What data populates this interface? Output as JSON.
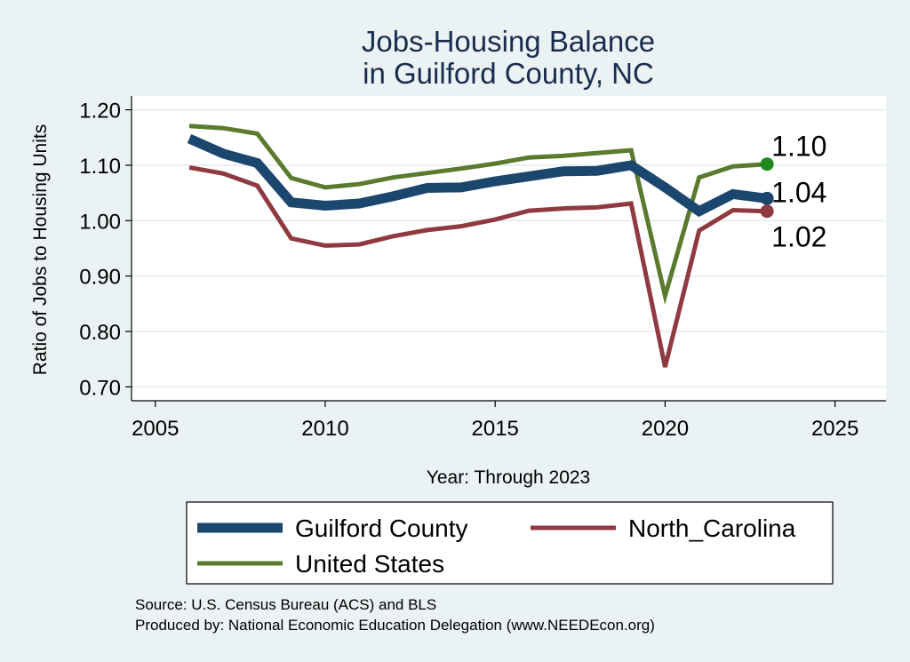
{
  "chart_data": {
    "type": "line",
    "title": [
      "Jobs-Housing Balance",
      "in Guilford County, NC"
    ],
    "xlabel": "Year: Through 2023",
    "ylabel": "Ratio of Jobs to Housing Units",
    "xlim": [
      2004.3,
      2026.5
    ],
    "ylim": [
      0.675,
      1.225
    ],
    "x_ticks": [
      2005,
      2010,
      2015,
      2020,
      2025
    ],
    "y_ticks": [
      0.7,
      0.8,
      0.9,
      1.0,
      1.1,
      1.2
    ],
    "y_tick_labels": [
      "0.70",
      "0.80",
      "0.90",
      "1.00",
      "1.10",
      "1.20"
    ],
    "grid": true,
    "legend_position": "bottom",
    "x": [
      2006,
      2007,
      2008,
      2009,
      2010,
      2011,
      2012,
      2013,
      2014,
      2015,
      2016,
      2017,
      2018,
      2019,
      2020,
      2021,
      2022,
      2023
    ],
    "series": [
      {
        "name": "Guilford County",
        "color": "#1b466e",
        "values": [
          1.148,
          1.121,
          1.104,
          1.033,
          1.027,
          1.031,
          1.044,
          1.059,
          1.06,
          1.071,
          1.08,
          1.089,
          1.09,
          1.1,
          1.06,
          1.017,
          1.048,
          1.04
        ],
        "end_label": "1.04"
      },
      {
        "name": "North_Carolina",
        "color": "#8f3a40",
        "values": [
          1.096,
          1.085,
          1.063,
          0.968,
          0.955,
          0.957,
          0.972,
          0.983,
          0.99,
          1.002,
          1.018,
          1.022,
          1.024,
          1.031,
          0.736,
          0.982,
          1.019,
          1.017
        ],
        "end_label": "1.02"
      },
      {
        "name": "United States",
        "color": "#5a7a2e",
        "values": [
          1.171,
          1.167,
          1.157,
          1.077,
          1.06,
          1.066,
          1.078,
          1.086,
          1.094,
          1.103,
          1.114,
          1.117,
          1.122,
          1.127,
          0.864,
          1.078,
          1.098,
          1.102
        ],
        "end_label": "1.10"
      }
    ],
    "end_marker_colors": [
      "#1b466e",
      "#8f3a40",
      "#1e8a1e"
    ]
  },
  "notes": {
    "source": "Source: U.S. Census Bureau (ACS) and BLS",
    "produced_by": "Produced by: National Economic Education Delegation (www.NEEDEcon.org)"
  }
}
